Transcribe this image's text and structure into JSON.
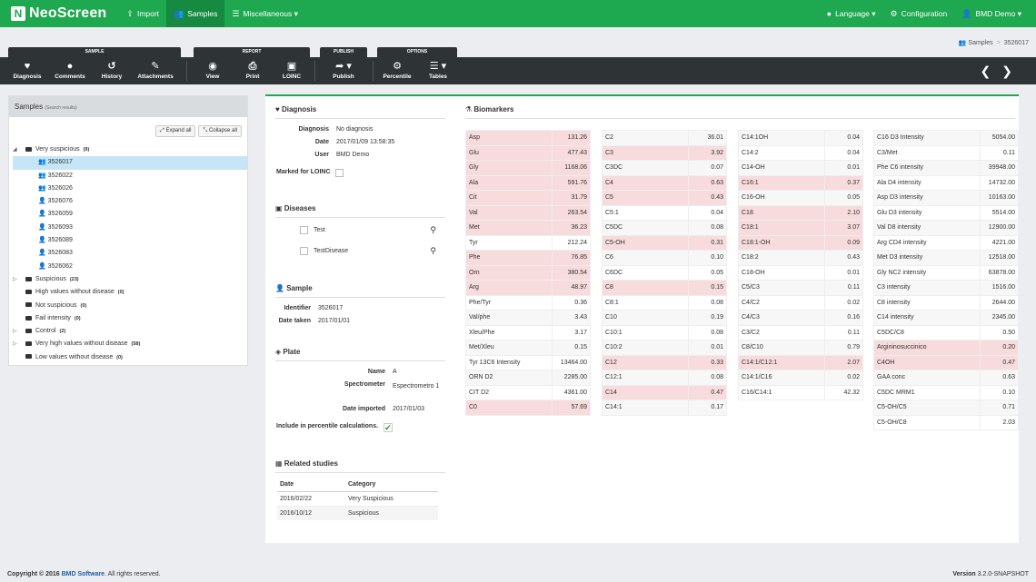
{
  "app": {
    "brand": "NeoScreen",
    "nav": [
      "Import",
      "Samples",
      "Miscellaneous"
    ],
    "right": [
      "Language",
      "Configuration",
      "BMD Demo"
    ]
  },
  "breadcrumb": [
    "Samples",
    "3526017"
  ],
  "toolbar": {
    "groups": [
      "SAMPLE",
      "REPORT",
      "PUBLISH",
      "OPTIONS"
    ],
    "buttons": [
      "Diagnosis",
      "Comments",
      "History",
      "Attachments",
      "View",
      "Print",
      "LOINC",
      "Publish",
      "Percentile",
      "Tables"
    ]
  },
  "left": {
    "title": "Samples",
    "subtitle": "(Search results)",
    "expand": "Expand all",
    "collapse": "Collapse all",
    "open_group": {
      "label": "Very suspicious",
      "count": "(9)",
      "items": [
        "3526017",
        "3526022",
        "3526026",
        "3526076",
        "3526059",
        "3526093",
        "3526089",
        "3526083",
        "3526062"
      ]
    },
    "groups": [
      {
        "label": "Suspicious",
        "count": "(23)"
      },
      {
        "label": "High values without disease",
        "count": "(0)"
      },
      {
        "label": "Not suspicious",
        "count": "(0)"
      },
      {
        "label": "Fail intensity",
        "count": "(0)"
      },
      {
        "label": "Control",
        "count": "(2)"
      },
      {
        "label": "Very high values without disease",
        "count": "(58)"
      },
      {
        "label": "Low values without disease",
        "count": "(0)"
      }
    ]
  },
  "diagnosis": {
    "title": "Diagnosis",
    "k1": "Diagnosis",
    "v1": "No diagnosis",
    "k2": "Date",
    "v2": "2017/01/09 13:58:35",
    "k3": "User",
    "v3": "BMD Demo",
    "k4": "Marked for LOINC"
  },
  "diseases": {
    "title": "Diseases",
    "items": [
      "Test",
      "TestDisease"
    ]
  },
  "sample": {
    "title": "Sample",
    "k1": "Identifier",
    "v1": "3526017",
    "k2": "Date taken",
    "v2": "2017/01/01"
  },
  "plate": {
    "title": "Plate",
    "k1": "Name",
    "v1": "A",
    "k2": "Spectrometer",
    "v2": "Espectrometro 1",
    "k3": "Date imported",
    "v3": "2017/01/03",
    "k4": "Include in percentile calculations."
  },
  "related": {
    "title": "Related studies",
    "h1": "Date",
    "h2": "Category",
    "rows": [
      [
        "2016/02/22",
        "Very Suspicious"
      ],
      [
        "2016/10/12",
        "Suspicious"
      ]
    ]
  },
  "biomarkers": {
    "title": "Biomarkers",
    "columns": [
      [
        [
          "Asp",
          "131.26",
          1
        ],
        [
          "Glu",
          "477.43",
          1
        ],
        [
          "Gly",
          "1168.06",
          1
        ],
        [
          "Ala",
          "591.76",
          1
        ],
        [
          "Cit",
          "31.79",
          1
        ],
        [
          "Val",
          "263.54",
          1
        ],
        [
          "Met",
          "36.23",
          1
        ],
        [
          "Tyr",
          "212.24",
          0
        ],
        [
          "Phe",
          "76.85",
          1
        ],
        [
          "Orn",
          "380.54",
          1
        ],
        [
          "Arg",
          "48.97",
          1
        ],
        [
          "Phe/Tyr",
          "0.36",
          0
        ],
        [
          "Val/phe",
          "3.43",
          0
        ],
        [
          "Xleu/Phe",
          "3.17",
          0
        ],
        [
          "Met/Xleu",
          "0.15",
          0
        ],
        [
          "Tyr 13C6 Intensity",
          "13464.00",
          0
        ],
        [
          "ORN D2",
          "2285.00",
          0
        ],
        [
          "CIT D2",
          "4361.00",
          0
        ],
        [
          "C0",
          "57.69",
          1
        ]
      ],
      [
        [
          "C2",
          "36.01",
          0
        ],
        [
          "C3",
          "3.92",
          1
        ],
        [
          "C3DC",
          "0.07",
          0
        ],
        [
          "C4",
          "0.63",
          1
        ],
        [
          "C5",
          "0.43",
          1
        ],
        [
          "C5:1",
          "0.04",
          0
        ],
        [
          "C5DC",
          "0.08",
          0
        ],
        [
          "C5-OH",
          "0.31",
          1
        ],
        [
          "C6",
          "0.10",
          0
        ],
        [
          "C6DC",
          "0.05",
          0
        ],
        [
          "C8",
          "0.15",
          1
        ],
        [
          "C8:1",
          "0.08",
          0
        ],
        [
          "C10",
          "0.19",
          0
        ],
        [
          "C10:1",
          "0.08",
          0
        ],
        [
          "C10:2",
          "0.01",
          0
        ],
        [
          "C12",
          "0.33",
          1
        ],
        [
          "C12:1",
          "0.08",
          0
        ],
        [
          "C14",
          "0.47",
          1
        ],
        [
          "C14:1",
          "0.17",
          0
        ]
      ],
      [
        [
          "C14:1OH",
          "0.04",
          0
        ],
        [
          "C14:2",
          "0.04",
          0
        ],
        [
          "C14-OH",
          "0.01",
          0
        ],
        [
          "C16:1",
          "0.37",
          1
        ],
        [
          "C16-OH",
          "0.05",
          0
        ],
        [
          "C18",
          "2.10",
          1
        ],
        [
          "C18:1",
          "3.07",
          1
        ],
        [
          "C18:1-OH",
          "0.09",
          1
        ],
        [
          "C18:2",
          "0.43",
          0
        ],
        [
          "C18-OH",
          "0.01",
          0
        ],
        [
          "C5/C3",
          "0.11",
          0
        ],
        [
          "C4/C2",
          "0.02",
          0
        ],
        [
          "C4/C3",
          "0.16",
          0
        ],
        [
          "C3/C2",
          "0.11",
          0
        ],
        [
          "C8/C10",
          "0.79",
          0
        ],
        [
          "C14:1/C12:1",
          "2.07",
          1
        ],
        [
          "C14:1/C16",
          "0.02",
          0
        ],
        [
          "C16/C14:1",
          "42.32",
          0
        ]
      ],
      [
        [
          "C16 D3 Intensity",
          "5054.00",
          0
        ],
        [
          "C3/Met",
          "0.11",
          0
        ],
        [
          "Phe C6 intensity",
          "39948.00",
          0
        ],
        [
          "Ala D4 intensity",
          "14732.00",
          0
        ],
        [
          "Asp D3 intensity",
          "10163.00",
          0
        ],
        [
          "Glu D3 intensity",
          "5514.00",
          0
        ],
        [
          "Val D8 intensity",
          "12900.00",
          0
        ],
        [
          "Arg CD4 intensity",
          "4221.00",
          0
        ],
        [
          "Met D3 intensity",
          "12518.00",
          0
        ],
        [
          "Gly NC2 intensity",
          "63878.00",
          0
        ],
        [
          "C3 intensity",
          "1516.00",
          0
        ],
        [
          "C8 intensity",
          "2644.00",
          0
        ],
        [
          "C14 intensity",
          "2345.00",
          0
        ],
        [
          "C5DC/C8",
          "0.50",
          0
        ],
        [
          "Argininosuccinico",
          "0.20",
          1
        ],
        [
          "C4OH",
          "0.47",
          1
        ],
        [
          "GAA conc",
          "0.63",
          0
        ],
        [
          "C5DC MRM1",
          "0.10",
          0
        ],
        [
          "C5-OH/C5",
          "0.71",
          0
        ],
        [
          "C5-OH/C8",
          "2.03",
          0
        ]
      ]
    ]
  },
  "footer": {
    "copy": "Copyright © 2016",
    "company": "BMD Software",
    "rights": ". All rights reserved.",
    "version_label": "Version",
    "version": "3.2.0-SNAPSHOT"
  }
}
